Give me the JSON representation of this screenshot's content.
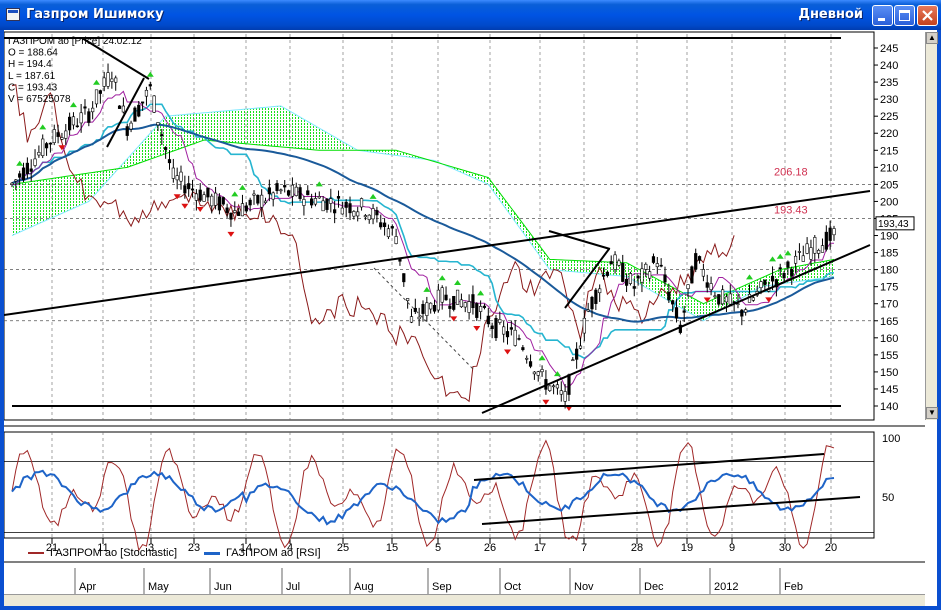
{
  "window": {
    "title": "Газпром Ишимоку",
    "period_label": "Дневной"
  },
  "info_box": {
    "lines": [
      "ГАЗПРОМ ао [Price] 24.02.12",
      "O = 188.64",
      "H = 194.4",
      "L = 187.61",
      "C = 193.43",
      "V = 67525078"
    ]
  },
  "price_axis": {
    "ticks": [
      "245",
      "240",
      "235",
      "230",
      "225",
      "220",
      "215",
      "210",
      "205",
      "200",
      "195",
      "190",
      "185",
      "180",
      "175",
      "170",
      "165",
      "160",
      "155",
      "150",
      "145",
      "140"
    ],
    "current_value": "193,43"
  },
  "annotations": {
    "high_level": "206.18",
    "last_close": "193.43"
  },
  "oscillator_axis": {
    "ticks": [
      "100",
      "50"
    ]
  },
  "legend": {
    "stochastic": "ГАЗПРОМ ао [Stochastic]",
    "rsi": "ГАЗПРОМ ао [RSI]"
  },
  "date_axis": {
    "day_ticks": [
      "21",
      "11",
      "3",
      "23",
      "14",
      "4",
      "25",
      "15",
      "5",
      "26",
      "17",
      "7",
      "28",
      "19",
      "9",
      "30",
      "20"
    ],
    "month_labels": [
      "Apr",
      "May",
      "Jun",
      "Jul",
      "Aug",
      "Sep",
      "Oct",
      "Nov",
      "Dec",
      "2012",
      "Feb"
    ]
  },
  "colors": {
    "stochastic": "#a02828",
    "rsi": "#1e64c8",
    "signal_up": "#22cc22",
    "signal_down": "#dd1111",
    "kumo_fill": "#00dd00",
    "kumo_cyan": "#7fe8ff",
    "baseline": "#1a5a9a",
    "tenkan": "#a020a0",
    "titlebar": "#0054e3",
    "annotation": "#d03050"
  },
  "icons": {
    "app": "chart-window-icon",
    "minimize": "minimize-icon",
    "maximize": "maximize-icon",
    "close": "close-icon"
  }
}
